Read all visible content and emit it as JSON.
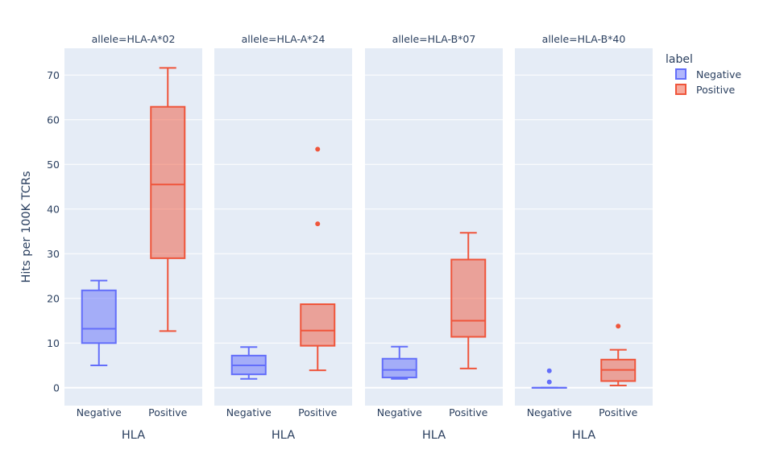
{
  "chart_data": {
    "type": "box",
    "facet_prefix": "allele=",
    "facets": [
      "HLA-A*02",
      "HLA-A*24",
      "HLA-B*07",
      "HLA-B*40"
    ],
    "categories": [
      "Negative",
      "Positive"
    ],
    "xlabel": "HLA",
    "ylabel": "Hits per 100K TCRs",
    "ylim": [
      -4,
      76
    ],
    "yticks": [
      0,
      10,
      20,
      30,
      40,
      50,
      60,
      70
    ],
    "legend": {
      "title": "label",
      "position": "top-right",
      "entries": [
        "Negative",
        "Positive"
      ]
    },
    "colors": {
      "Negative": "#636efa",
      "Positive": "#ef553b",
      "plot_bg": "#e5ecf6",
      "grid": "#ffffff",
      "text": "#2a3f5f"
    },
    "boxes": [
      {
        "facet": "HLA-A*02",
        "label": "Negative",
        "min": 5.0,
        "q1": 10.0,
        "median": 13.2,
        "q3": 21.8,
        "max": 24.0,
        "outliers": []
      },
      {
        "facet": "HLA-A*02",
        "label": "Positive",
        "min": 12.7,
        "q1": 29.0,
        "median": 45.5,
        "q3": 62.9,
        "max": 71.6,
        "outliers": []
      },
      {
        "facet": "HLA-A*24",
        "label": "Negative",
        "min": 2.0,
        "q1": 3.0,
        "median": 5.0,
        "q3": 7.2,
        "max": 9.1,
        "outliers": []
      },
      {
        "facet": "HLA-A*24",
        "label": "Positive",
        "min": 3.9,
        "q1": 9.4,
        "median": 12.8,
        "q3": 18.7,
        "max": 18.7,
        "outliers": [
          36.7,
          53.4
        ]
      },
      {
        "facet": "HLA-B*07",
        "label": "Negative",
        "min": 2.0,
        "q1": 2.3,
        "median": 4.0,
        "q3": 6.5,
        "max": 9.2,
        "outliers": []
      },
      {
        "facet": "HLA-B*07",
        "label": "Positive",
        "min": 4.3,
        "q1": 11.4,
        "median": 15.0,
        "q3": 28.7,
        "max": 34.7,
        "outliers": []
      },
      {
        "facet": "HLA-B*40",
        "label": "Negative",
        "min": 0.0,
        "q1": 0.0,
        "median": 0.0,
        "q3": 0.0,
        "max": 0.0,
        "outliers": [
          1.3,
          3.8
        ]
      },
      {
        "facet": "HLA-B*40",
        "label": "Positive",
        "min": 0.5,
        "q1": 1.5,
        "median": 4.0,
        "q3": 6.3,
        "max": 8.5,
        "outliers": [
          13.8
        ]
      }
    ]
  }
}
